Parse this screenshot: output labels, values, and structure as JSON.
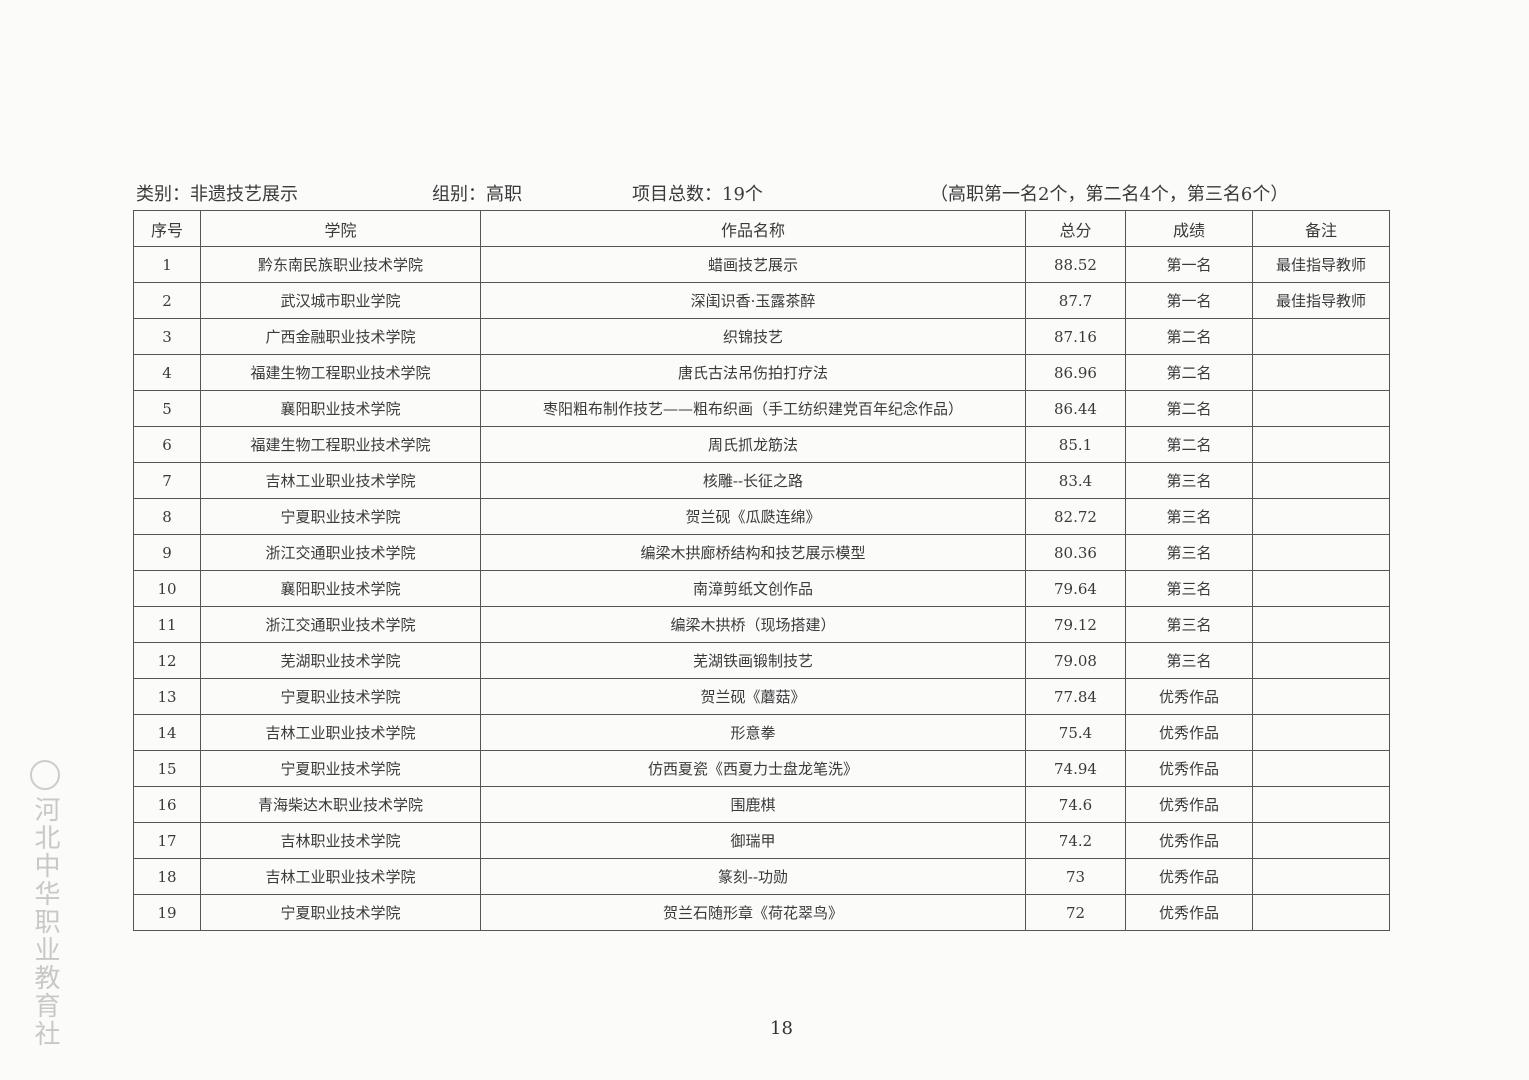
{
  "header": {
    "category": "类别：非遗技艺展示",
    "group": "组别：高职",
    "total": "项目总数：19个",
    "quota": "（高职第一名2个，第二名4个，第三名6个）"
  },
  "table": {
    "columns": [
      "序号",
      "学院",
      "作品名称",
      "总分",
      "成绩",
      "备注"
    ],
    "rows": [
      [
        "1",
        "黔东南民族职业技术学院",
        "蜡画技艺展示",
        "88.52",
        "第一名",
        "最佳指导教师"
      ],
      [
        "2",
        "武汉城市职业学院",
        "深闺识香·玉露茶醉",
        "87.7",
        "第一名",
        "最佳指导教师"
      ],
      [
        "3",
        "广西金融职业技术学院",
        "织锦技艺",
        "87.16",
        "第二名",
        ""
      ],
      [
        "4",
        "福建生物工程职业技术学院",
        "唐氏古法吊伤拍打疗法",
        "86.96",
        "第二名",
        ""
      ],
      [
        "5",
        "襄阳职业技术学院",
        "枣阳粗布制作技艺——粗布织画（手工纺织建党百年纪念作品）",
        "86.44",
        "第二名",
        ""
      ],
      [
        "6",
        "福建生物工程职业技术学院",
        "周氏抓龙筋法",
        "85.1",
        "第二名",
        ""
      ],
      [
        "7",
        "吉林工业职业技术学院",
        "核雕--长征之路",
        "83.4",
        "第三名",
        ""
      ],
      [
        "8",
        "宁夏职业技术学院",
        "贺兰砚《瓜瓞连绵》",
        "82.72",
        "第三名",
        ""
      ],
      [
        "9",
        "浙江交通职业技术学院",
        "编梁木拱廊桥结构和技艺展示模型",
        "80.36",
        "第三名",
        ""
      ],
      [
        "10",
        "襄阳职业技术学院",
        "南漳剪纸文创作品",
        "79.64",
        "第三名",
        ""
      ],
      [
        "11",
        "浙江交通职业技术学院",
        "编梁木拱桥（现场搭建）",
        "79.12",
        "第三名",
        ""
      ],
      [
        "12",
        "芜湖职业技术学院",
        "芜湖铁画锻制技艺",
        "79.08",
        "第三名",
        ""
      ],
      [
        "13",
        "宁夏职业技术学院",
        "贺兰砚《蘑菇》",
        "77.84",
        "优秀作品",
        ""
      ],
      [
        "14",
        "吉林工业职业技术学院",
        "形意拳",
        "75.4",
        "优秀作品",
        ""
      ],
      [
        "15",
        "宁夏职业技术学院",
        "仿西夏瓷《西夏力士盘龙笔洗》",
        "74.94",
        "优秀作品",
        ""
      ],
      [
        "16",
        "青海柴达木职业技术学院",
        "围鹿棋",
        "74.6",
        "优秀作品",
        ""
      ],
      [
        "17",
        "吉林职业技术学院",
        "御瑞甲",
        "74.2",
        "优秀作品",
        ""
      ],
      [
        "18",
        "吉林工业职业技术学院",
        "篆刻--功勋",
        "73",
        "优秀作品",
        ""
      ],
      [
        "19",
        "宁夏职业技术学院",
        "贺兰石随形章《荷花翠鸟》",
        "72",
        "优秀作品",
        ""
      ]
    ]
  },
  "page_number": "18",
  "watermark": "河北中华职业教育社"
}
